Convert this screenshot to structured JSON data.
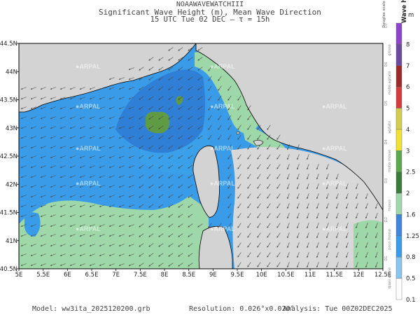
{
  "header": {
    "model_name": "NOAAWAVEWATCHIII",
    "variable": "Significant Wave Height (m), Mean Wave Direction",
    "time_line": "15 UTC Tue 02 DEC   —   τ = 15h"
  },
  "axes": {
    "x_ticks": [
      "5E",
      "5.5E",
      "6E",
      "6.5E",
      "7E",
      "7.5E",
      "8E",
      "8.5E",
      "9E",
      "9.5E",
      "10E",
      "10.5E",
      "11E",
      "11.5E",
      "12E",
      "12.5E"
    ],
    "y_ticks": [
      "44.5N",
      "44N",
      "43.5N",
      "43N",
      "42.5N",
      "42N",
      "41.5N",
      "41N",
      "40.5N"
    ]
  },
  "colorbar": {
    "title": "Wave height",
    "unit": "m",
    "levels": [
      "8",
      "7",
      "6",
      "5",
      "4",
      "3",
      "2.5",
      "2",
      "1.6",
      "1.25",
      "0.8",
      "0.5",
      "0.1"
    ],
    "colors": [
      "#8c45c8",
      "#6a4a9e",
      "#9d2a2a",
      "#d23c3c",
      "#d2cd4e",
      "#f0e030",
      "#5aa84a",
      "#3a7a3a",
      "#9fd8a8",
      "#3f86d8",
      "#3a9ce8",
      "#87c6ee",
      "#ffffff"
    ],
    "douglas_title": "Douglas scale",
    "douglas": [
      "D7",
      "D6",
      "D5",
      "D4",
      "D3",
      "D2",
      "D1"
    ],
    "douglas_desc": [
      "grosso",
      "molto agitato",
      "agitato",
      "molto mosso",
      "mosso",
      "poco mosso",
      "quasi calmo"
    ]
  },
  "watermark": "ARPAL",
  "footer": {
    "model": "Model: ww3ita_2025120200.grb",
    "resolution": "Resolution: 0.026°x0.020°",
    "analysis": "Analysis: Tue 00Z02DEC2025"
  },
  "colors": {
    "land": "#d3d3d3",
    "coast": "#000000",
    "arrow": "#4a4a4a"
  }
}
